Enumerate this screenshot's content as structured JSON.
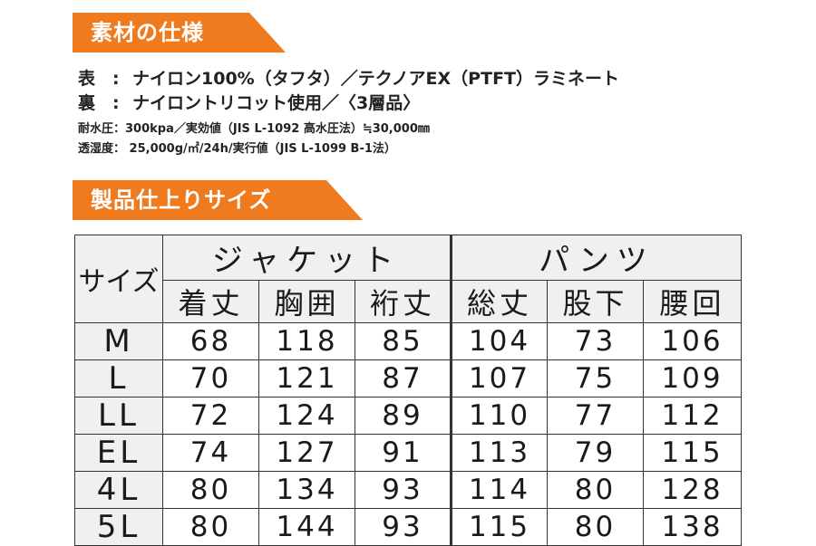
{
  "colors": {
    "banner": "#f07b1f",
    "header_bg": "#f0f0f0",
    "border": "#333333"
  },
  "materials": {
    "heading": "素材の仕様",
    "outer_label": "表",
    "outer_value": "ナイロン100%（タフタ）／テクノアEX（PTFT）ラミネート",
    "inner_label": "裏",
    "inner_value": "ナイロントリコット使用／〈3層品〉",
    "water_label": "耐水圧：",
    "water_value": "300kpa／実効値（JIS L-1092 高水圧法）≒30,000㎜",
    "breath_label": "透湿度：",
    "breath_value": "25,000g/㎡/24h/実行値（JIS L-1099 B-1法）"
  },
  "size_section": {
    "heading": "製品仕上りサイズ",
    "size_header": "サイズ",
    "jacket_header": "ジャケット",
    "pants_header": "パンツ",
    "columns": [
      "着丈",
      "胸囲",
      "裄丈",
      "総丈",
      "股下",
      "腰回"
    ],
    "rows": [
      {
        "size": "M",
        "values": [
          "68",
          "118",
          "85",
          "104",
          "73",
          "106"
        ]
      },
      {
        "size": "L",
        "values": [
          "70",
          "121",
          "87",
          "107",
          "75",
          "109"
        ]
      },
      {
        "size": "LL",
        "values": [
          "72",
          "124",
          "89",
          "110",
          "77",
          "112"
        ]
      },
      {
        "size": "EL",
        "values": [
          "74",
          "127",
          "91",
          "113",
          "79",
          "115"
        ]
      },
      {
        "size": "4L",
        "values": [
          "80",
          "134",
          "93",
          "114",
          "80",
          "128"
        ]
      },
      {
        "size": "5L",
        "values": [
          "80",
          "144",
          "93",
          "115",
          "80",
          "138"
        ]
      }
    ]
  }
}
